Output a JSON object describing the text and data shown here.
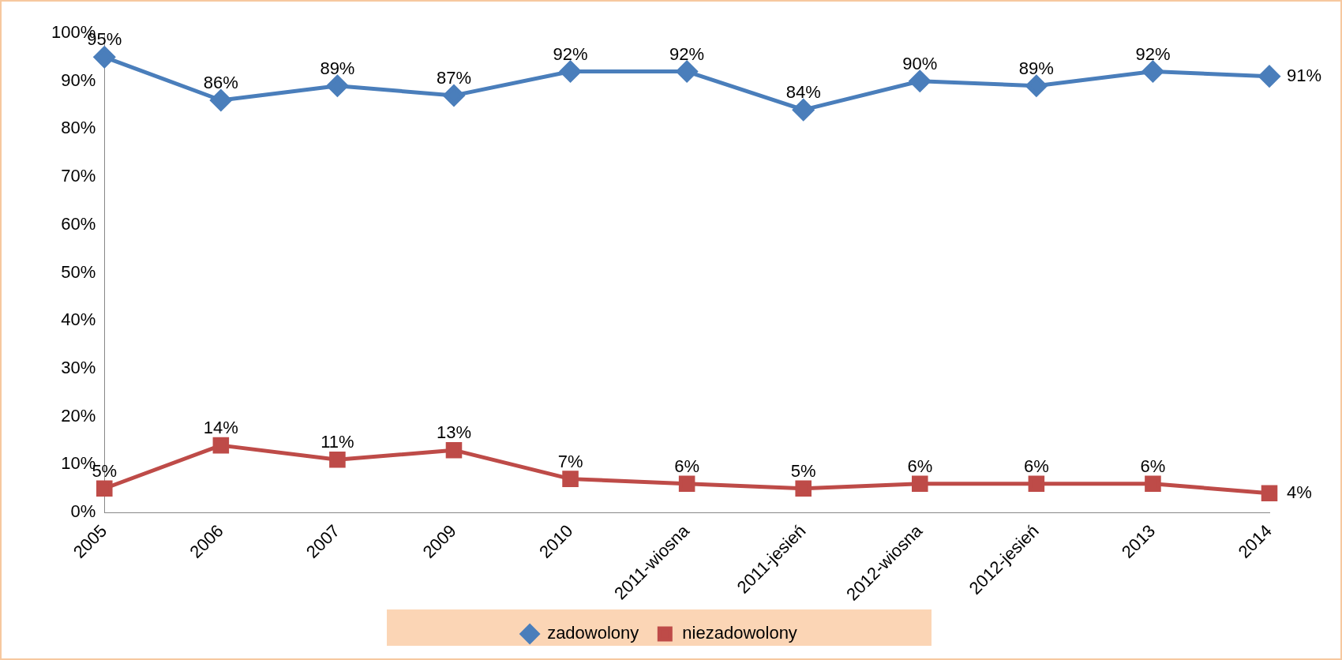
{
  "chart_data": {
    "type": "line",
    "categories": [
      "2005",
      "2006",
      "2007",
      "2009",
      "2010",
      "2011-wiosna",
      "2011-jesień",
      "2012-wiosna",
      "2012-jesień",
      "2013",
      "2014"
    ],
    "series": [
      {
        "name": "zadowolony",
        "color": "#4a7ebb",
        "marker": "diamond",
        "values": [
          95,
          86,
          89,
          87,
          92,
          92,
          84,
          90,
          89,
          92,
          91
        ],
        "value_labels": [
          "95%",
          "86%",
          "89%",
          "87%",
          "92%",
          "92%",
          "84%",
          "90%",
          "89%",
          "92%",
          "91%"
        ]
      },
      {
        "name": "niezadowolony",
        "color": "#be4b48",
        "marker": "square",
        "values": [
          5,
          14,
          11,
          13,
          7,
          6,
          5,
          6,
          6,
          6,
          4
        ],
        "value_labels": [
          "5%",
          "14%",
          "11%",
          "13%",
          "7%",
          "6%",
          "5%",
          "6%",
          "6%",
          "6%",
          "4%"
        ]
      }
    ],
    "ylim": [
      0,
      100
    ],
    "yticks": [
      {
        "value": 0,
        "label": "0%"
      },
      {
        "value": 10,
        "label": "10%"
      },
      {
        "value": 20,
        "label": "20%"
      },
      {
        "value": 30,
        "label": "30%"
      },
      {
        "value": 40,
        "label": "40%"
      },
      {
        "value": 50,
        "label": "50%"
      },
      {
        "value": 60,
        "label": "60%"
      },
      {
        "value": 70,
        "label": "70%"
      },
      {
        "value": 80,
        "label": "80%"
      },
      {
        "value": 90,
        "label": "90%"
      },
      {
        "value": 100,
        "label": "100%"
      }
    ],
    "grid": false,
    "legend": "bottom",
    "line_style": "solid"
  }
}
